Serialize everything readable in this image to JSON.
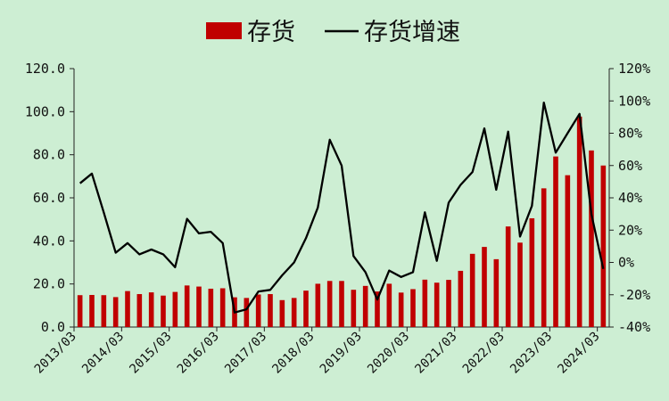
{
  "chart_data": {
    "type": "bar+line",
    "title": "",
    "legend": {
      "placement": "top-center",
      "items": [
        {
          "label": "存货",
          "kind": "bar",
          "color": "#c00000"
        },
        {
          "label": "存货增速",
          "kind": "line",
          "color": "#000000"
        }
      ]
    },
    "x_tick_labels": [
      "2013/03",
      "2014/03",
      "2015/03",
      "2016/03",
      "2017/03",
      "2018/03",
      "2019/03",
      "2020/03",
      "2021/03",
      "2022/03",
      "2023/03",
      "2024/03"
    ],
    "quarters": [
      "2013/03",
      "2013/06",
      "2013/09",
      "2013/12",
      "2014/03",
      "2014/06",
      "2014/09",
      "2014/12",
      "2015/03",
      "2015/06",
      "2015/09",
      "2015/12",
      "2016/03",
      "2016/06",
      "2016/09",
      "2016/12",
      "2017/03",
      "2017/06",
      "2017/09",
      "2017/12",
      "2018/03",
      "2018/06",
      "2018/09",
      "2018/12",
      "2019/03",
      "2019/06",
      "2019/09",
      "2019/12",
      "2020/03",
      "2020/06",
      "2020/09",
      "2020/12",
      "2021/03",
      "2021/06",
      "2021/09",
      "2021/12",
      "2022/03",
      "2022/06",
      "2022/09",
      "2022/12",
      "2023/03",
      "2023/06",
      "2023/09",
      "2023/12",
      "2024/03"
    ],
    "y_left": {
      "ticks": [
        "0.0",
        "20.0",
        "40.0",
        "60.0",
        "80.0",
        "100.0",
        "120.0"
      ],
      "ylim": [
        0,
        120
      ]
    },
    "y_right": {
      "ticks": [
        "-40%",
        "-20%",
        "0%",
        "20%",
        "40%",
        "60%",
        "80%",
        "100%",
        "120%"
      ],
      "ylim": [
        -40,
        120
      ],
      "unit": "%"
    },
    "series": [
      {
        "name": "存货",
        "type": "bar",
        "axis": "left",
        "color": "#c00000",
        "values": [
          14.8,
          14.9,
          14.8,
          13.9,
          16.7,
          15.3,
          16.1,
          14.6,
          16.3,
          19.3,
          18.8,
          17.8,
          18.0,
          13.8,
          13.5,
          15.1,
          15.3,
          12.5,
          13.5,
          16.9,
          20.1,
          21.4,
          21.4,
          17.3,
          19.1,
          16.5,
          20.1,
          16.0,
          17.6,
          22.0,
          20.6,
          21.9,
          26.1,
          34.0,
          37.2,
          31.5,
          46.7,
          39.2,
          50.5,
          64.4,
          79.2,
          70.5,
          97.7,
          82.0,
          75.0
        ]
      },
      {
        "name": "存货增速",
        "type": "line",
        "axis": "right",
        "color": "#000000",
        "values": [
          49,
          55,
          31,
          6,
          12,
          5,
          8,
          5,
          -3,
          27,
          18,
          19,
          12,
          -31,
          -29,
          -18,
          -17,
          -8,
          0,
          15,
          34,
          76,
          60,
          4,
          -6,
          -23,
          -5,
          -9,
          -6,
          31,
          1,
          37,
          48,
          56,
          83,
          45,
          81,
          16,
          35,
          99,
          68,
          80,
          92,
          30,
          -4
        ]
      }
    ]
  }
}
